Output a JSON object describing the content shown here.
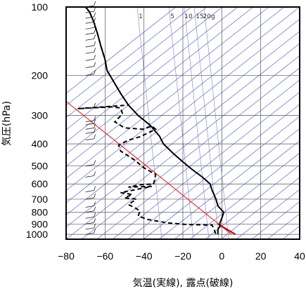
{
  "chart_data": {
    "type": "line",
    "xlabel": "気温(実線), 露点(破線)",
    "ylabel": "気圧(hPa)",
    "xlim": [
      -80,
      40
    ],
    "ylim": [
      1050,
      100
    ],
    "yscale": "log",
    "x_ticks": [
      -80,
      -60,
      -40,
      -20,
      0,
      20,
      40
    ],
    "y_ticks": [
      100,
      200,
      300,
      400,
      500,
      600,
      700,
      800,
      900,
      1000
    ],
    "mixing_ratio_labels": [
      "1",
      "5",
      "10",
      "15",
      "20g"
    ],
    "grid": true,
    "series": [
      {
        "style": "solid",
        "color": "#000000",
        "points": [
          [
            -70,
            100
          ],
          [
            -68,
            105
          ],
          [
            -66,
            115
          ],
          [
            -64,
            130
          ],
          [
            -62,
            150
          ],
          [
            -60,
            170
          ],
          [
            -59,
            190
          ],
          [
            -56,
            210
          ],
          [
            -52,
            240
          ],
          [
            -48,
            270
          ],
          [
            -43,
            300
          ],
          [
            -37,
            330
          ],
          [
            -32,
            370
          ],
          [
            -30,
            400
          ],
          [
            -25,
            440
          ],
          [
            -20,
            480
          ],
          [
            -15,
            520
          ],
          [
            -10,
            560
          ],
          [
            -6,
            600
          ],
          [
            -5,
            640
          ],
          [
            -3,
            700
          ],
          [
            -2,
            750
          ],
          [
            1,
            800
          ],
          [
            0,
            850
          ],
          [
            -1,
            890
          ],
          [
            -1,
            920
          ],
          [
            -2,
            950
          ],
          [
            -2,
            1000
          ]
        ]
      },
      {
        "style": "dashed",
        "color": "#000000",
        "points": [
          [
            -70,
            100
          ],
          [
            -68,
            105
          ],
          [
            -66,
            115
          ],
          [
            -64,
            130
          ],
          [
            -62,
            150
          ],
          [
            -60,
            170
          ],
          [
            -59,
            190
          ],
          [
            -56,
            210
          ],
          [
            -52,
            240
          ],
          [
            -48,
            270
          ],
          [
            -74,
            280
          ],
          [
            -57,
            275
          ],
          [
            -52,
            278
          ],
          [
            -51,
            295
          ],
          [
            -55,
            320
          ],
          [
            -50,
            340
          ],
          [
            -40,
            345
          ],
          [
            -36,
            333
          ],
          [
            -34,
            345
          ],
          [
            -42,
            372
          ],
          [
            -48,
            385
          ],
          [
            -53,
            405
          ],
          [
            -52,
            430
          ],
          [
            -45,
            470
          ],
          [
            -40,
            510
          ],
          [
            -34,
            545
          ],
          [
            -35,
            600
          ],
          [
            -42,
            605
          ],
          [
            -48,
            620
          ],
          [
            -36,
            615
          ],
          [
            -52,
            655
          ],
          [
            -46,
            668
          ],
          [
            -50,
            690
          ],
          [
            -44,
            700
          ],
          [
            -48,
            740
          ],
          [
            -45,
            760
          ],
          [
            -42,
            790
          ],
          [
            -43,
            830
          ],
          [
            -38,
            860
          ],
          [
            -28,
            890
          ],
          [
            -18,
            905
          ],
          [
            -5,
            910
          ],
          [
            -4,
            950
          ],
          [
            -3,
            1000
          ]
        ]
      }
    ],
    "reference_line": {
      "color": "#ff0000",
      "points": [
        [
          -80,
          260
        ],
        [
          5,
          1000
        ]
      ]
    },
    "surface_segment": {
      "color": "#bb0000",
      "points": [
        [
          -2,
          900
        ],
        [
          7,
          1000
        ]
      ]
    },
    "wind_barbs_x": -70,
    "guide_line_color": "#3f4fd0",
    "mixing_line_color": "#8080c0"
  }
}
